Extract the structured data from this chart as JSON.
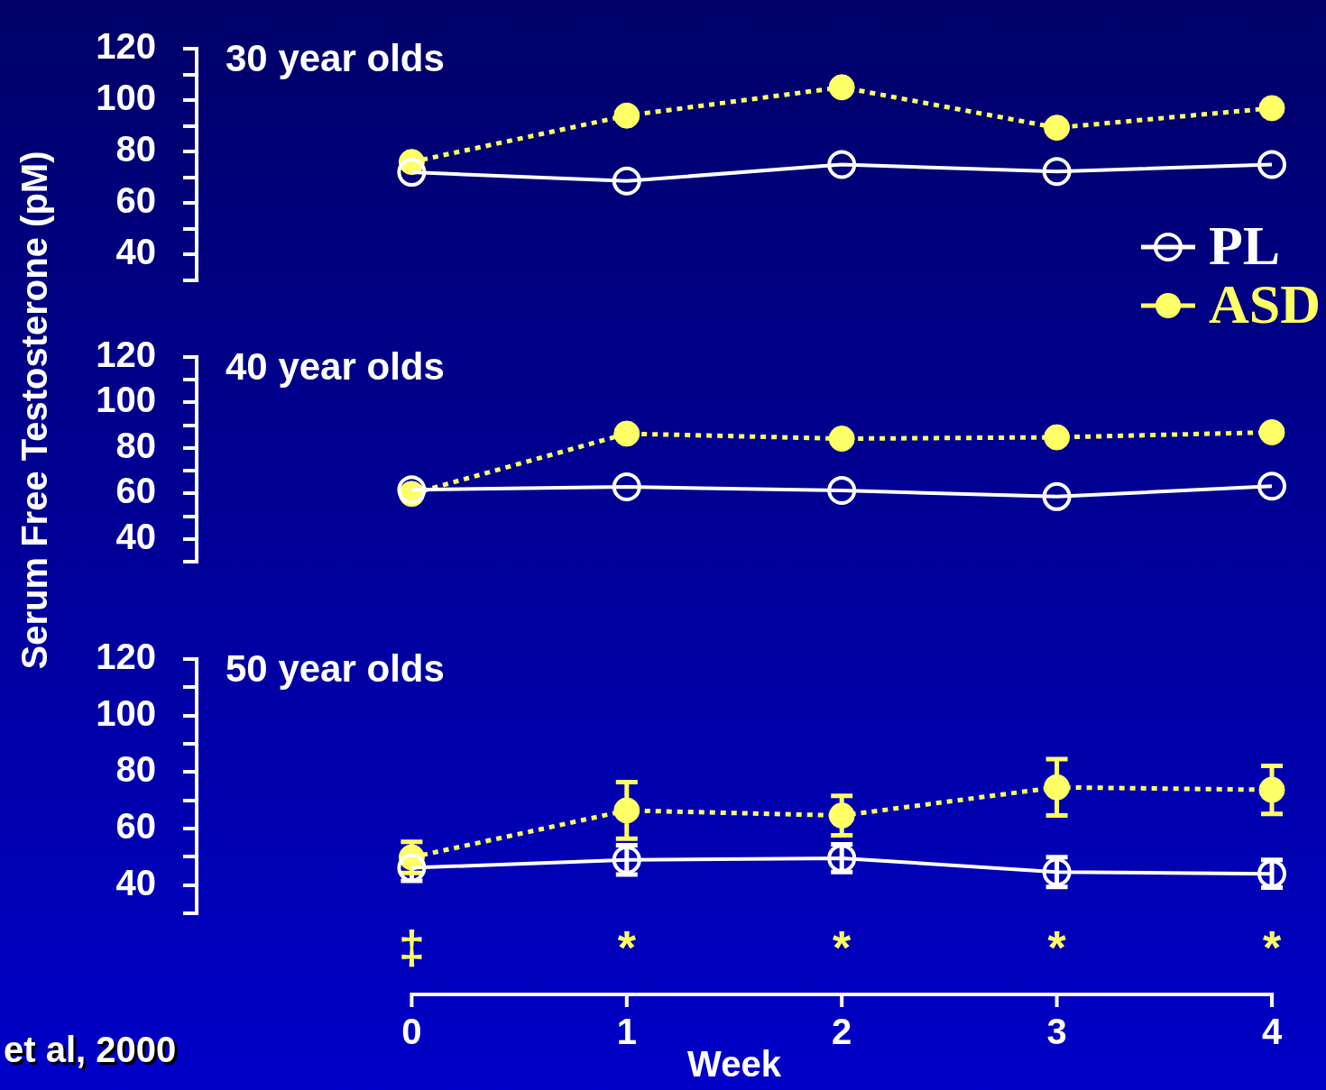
{
  "chart_data": [
    {
      "type": "line",
      "title": "30 year olds",
      "x": [
        0,
        1,
        2,
        3,
        4
      ],
      "xlim": [
        -1,
        4
      ],
      "xticks": [
        0,
        1,
        2,
        3,
        4
      ],
      "ylim": [
        30,
        120
      ],
      "yticks": [
        {
          "value": 30,
          "label": null
        },
        40,
        {
          "value": 50,
          "label": null
        },
        60,
        {
          "value": 70,
          "label": null
        },
        80,
        {
          "value": 90,
          "label": null
        },
        100,
        {
          "value": 110,
          "label": null
        },
        120
      ],
      "tick_labels": "y",
      "grid": false,
      "legend": "right",
      "marker": "circle",
      "series": [
        {
          "name": "PL",
          "color": "#ffffff",
          "line_style": "solid",
          "values": [
            72,
            68.6,
            75,
            72.3,
            75
          ]
        },
        {
          "name": "ASD",
          "color": "#ffff66",
          "line_style": "dotted",
          "values": [
            76,
            94,
            105,
            89.3,
            96.9
          ]
        }
      ]
    },
    {
      "type": "line",
      "title": "40 year olds",
      "ylabel": "Serum Free Testosterone (pM)",
      "x": [
        0,
        1,
        2,
        3,
        4
      ],
      "xlim": [
        -1,
        4
      ],
      "xticks": [
        0,
        1,
        2,
        3,
        4
      ],
      "ylim": [
        30,
        120
      ],
      "yticks": [
        {
          "value": 30,
          "label": null
        },
        40,
        {
          "value": 50,
          "label": null
        },
        60,
        {
          "value": 70,
          "label": null
        },
        80,
        {
          "value": 90,
          "label": null
        },
        100,
        {
          "value": 110,
          "label": null
        },
        120
      ],
      "tick_labels": "y",
      "grid": false,
      "marker": "circle",
      "series": [
        {
          "color": "#ffffff",
          "line_style": "solid",
          "values": [
            61.6,
            62.9,
            61.3,
            58.6,
            63.2
          ]
        },
        {
          "color": "#ffff66",
          "line_style": "dotted",
          "values": [
            59.8,
            86.3,
            84.1,
            84.7,
            86.9
          ]
        }
      ]
    },
    {
      "type": "line",
      "title": "50 year olds",
      "xlabel": "Week",
      "x": [
        0,
        1,
        2,
        3,
        4
      ],
      "xlim": [
        -1,
        4
      ],
      "xticks": [
        0,
        1,
        2,
        3,
        4
      ],
      "ylim": [
        30,
        120
      ],
      "yticks": [
        {
          "value": 30,
          "label": null
        },
        40,
        {
          "value": 50,
          "label": null
        },
        60,
        {
          "value": 70,
          "label": null
        },
        80,
        {
          "value": 90,
          "label": null
        },
        100,
        {
          "value": 110,
          "label": null
        },
        120
      ],
      "grid": false,
      "marker": "circle",
      "annotations": [
        {
          "text": "‡",
          "x": 0
        },
        {
          "text": "*",
          "x": 1
        },
        {
          "text": "*",
          "x": 2
        },
        {
          "text": "*",
          "x": 3
        },
        {
          "text": "*",
          "x": 4
        },
        "et al, 2000"
      ],
      "series": [
        {
          "color": "#ffffff",
          "line_style": "solid",
          "values": [
            46.1,
            48.9,
            49.5,
            44.6,
            44
          ],
          "errors": [
            4.6,
            5.2,
            4.9,
            5.3,
            4.9
          ]
        },
        {
          "color": "#ffff66",
          "line_style": "dotted",
          "values": [
            49.8,
            66.4,
            64.6,
            74.6,
            73.7
          ],
          "errors": [
            5.5,
            10,
            7,
            10,
            8.5
          ]
        }
      ]
    }
  ]
}
